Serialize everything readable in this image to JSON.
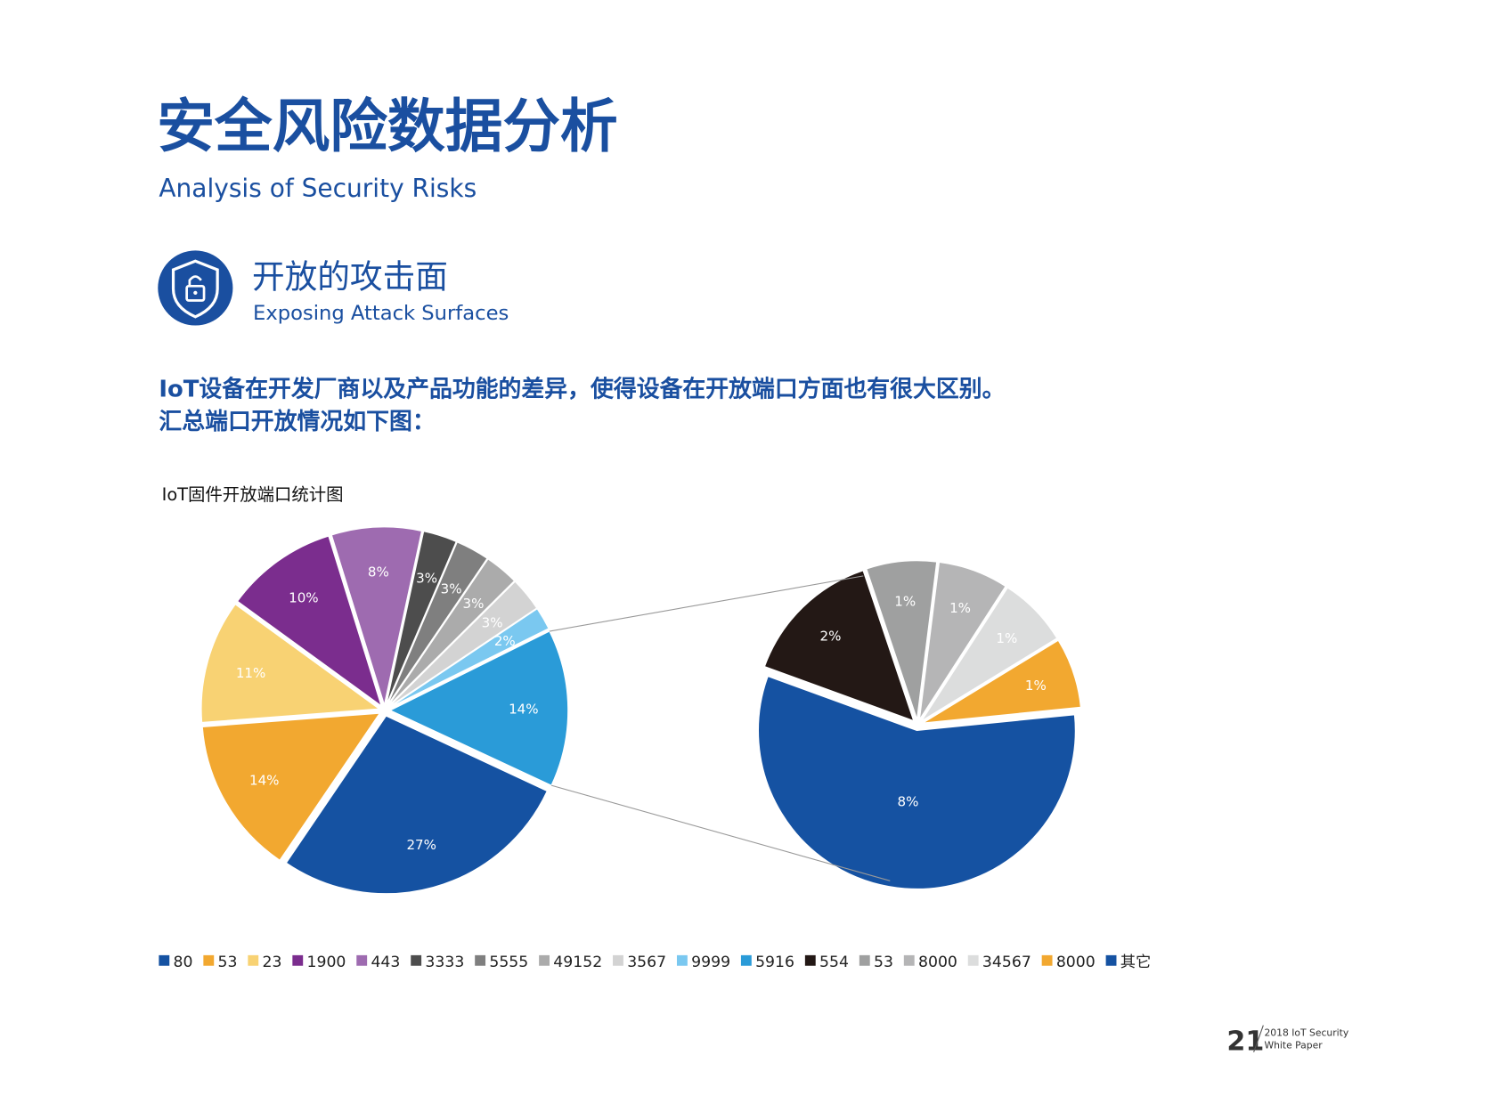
{
  "header": {
    "title": "安全风险数据分析",
    "subtitle": "Analysis of Security Risks"
  },
  "section": {
    "title": "开放的攻击面",
    "subtitle": "Exposing Attack Surfaces"
  },
  "intro": [
    "IoT设备在开发厂商以及产品功能的差异，使得设备在开放端口方面也有很大区别。",
    "汇总端口开放情况如下图："
  ],
  "chart_data": {
    "type": "pie-of-pie",
    "title": "IoT固件开放端口统计图",
    "pies": [
      {
        "categories": [
          "80",
          "53",
          "23",
          "1900",
          "443",
          "3333",
          "5555",
          "49152",
          "3567",
          "9999",
          "5916"
        ],
        "colors": [
          "#1552a2",
          "#f2a830",
          "#f8d273",
          "#7b2d8e",
          "#9e6bb0",
          "#4d4d4d",
          "#7f7f7f",
          "#ababab",
          "#d3d3d3",
          "#7ac8f0",
          "#2a9bd8"
        ],
        "values": [
          27,
          14,
          11,
          10,
          8,
          3,
          3,
          3,
          3,
          2,
          14
        ],
        "value_labels": [
          "27%",
          "14%",
          "11%",
          "10%",
          "8%",
          "3%",
          "3%",
          "3%",
          "3%",
          "2%",
          "14%"
        ]
      },
      {
        "categories": [
          "554",
          "53",
          "8000",
          "34567",
          "8000",
          "其它"
        ],
        "colors": [
          "#231815",
          "#9fa0a0",
          "#b5b5b6",
          "#dcdddd",
          "#f2a830",
          "#1552a2"
        ],
        "values": [
          2,
          1,
          1,
          1,
          1,
          8
        ],
        "value_labels": [
          "2%",
          "1%",
          "1%",
          "1%",
          "1%",
          "8%"
        ]
      }
    ]
  },
  "footer": {
    "page": "21",
    "lines": [
      "2018 IoT Security",
      "White Paper"
    ]
  }
}
